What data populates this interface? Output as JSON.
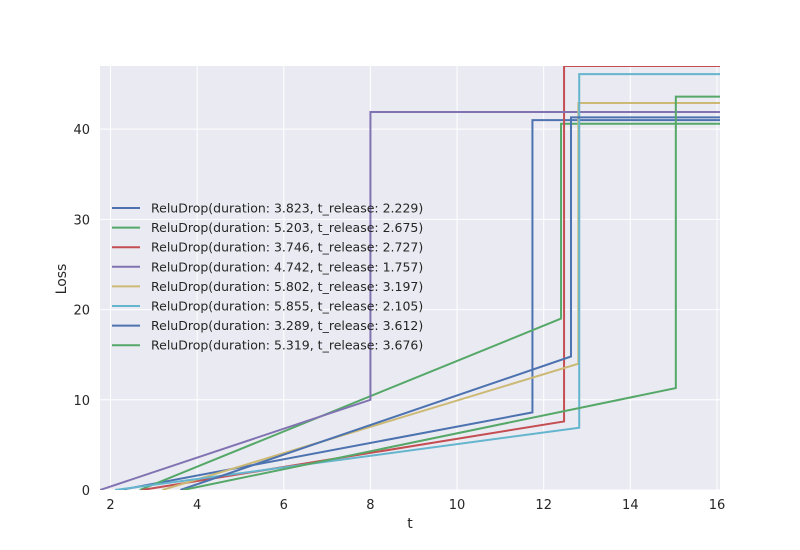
{
  "chart_data": {
    "type": "line",
    "title": "",
    "xlabel": "t",
    "ylabel": "Loss",
    "xlim": [
      1.757,
      16.07
    ],
    "ylim": [
      0,
      47
    ],
    "xticks": [
      2,
      4,
      6,
      8,
      10,
      12,
      14,
      16
    ],
    "yticks": [
      0,
      10,
      20,
      30,
      40
    ],
    "grid": true,
    "legend_placement": "center-left",
    "colors": {
      "background": "#eaeaf2",
      "grid": "#ffffff",
      "text": "#262626"
    },
    "series": [
      {
        "name": "ReluDrop(duration: 3.823, t_release: 2.229)",
        "color": "#4c72b0",
        "x": [
          2.229,
          11.74,
          11.74,
          16.07
        ],
        "y": [
          0,
          8.6,
          41.0,
          41.0
        ]
      },
      {
        "name": "ReluDrop(duration: 5.203, t_release: 2.675)",
        "color": "#55a868",
        "x": [
          2.675,
          12.4,
          12.4,
          16.07
        ],
        "y": [
          0,
          19.0,
          40.6,
          40.6
        ]
      },
      {
        "name": "ReluDrop(duration: 3.746, t_release: 2.727)",
        "color": "#c44e52",
        "x": [
          2.727,
          12.47,
          12.47,
          16.07
        ],
        "y": [
          0,
          7.6,
          47.0,
          47.0
        ]
      },
      {
        "name": "ReluDrop(duration: 4.742, t_release: 1.757)",
        "color": "#8172b2",
        "x": [
          1.757,
          8.0,
          8.0,
          16.07
        ],
        "y": [
          0,
          10.0,
          41.9,
          41.9
        ]
      },
      {
        "name": "ReluDrop(duration: 5.802, t_release: 3.197)",
        "color": "#ccb974",
        "x": [
          3.197,
          12.8,
          12.8,
          16.07
        ],
        "y": [
          0,
          14.0,
          42.9,
          42.9
        ]
      },
      {
        "name": "ReluDrop(duration: 5.855, t_release: 2.105)",
        "color": "#64b5cd",
        "x": [
          2.105,
          12.82,
          12.82,
          16.07
        ],
        "y": [
          0,
          6.9,
          46.1,
          46.1
        ]
      },
      {
        "name": "ReluDrop(duration: 3.289, t_release: 3.612)",
        "color": "#4c72b0",
        "x": [
          3.612,
          12.63,
          12.63,
          16.07
        ],
        "y": [
          0,
          14.8,
          41.3,
          41.3
        ]
      },
      {
        "name": "ReluDrop(duration: 5.319, t_release: 3.676)",
        "color": "#55a868",
        "x": [
          3.676,
          15.05,
          15.05,
          16.07
        ],
        "y": [
          0,
          11.3,
          43.6,
          43.6
        ]
      }
    ]
  }
}
